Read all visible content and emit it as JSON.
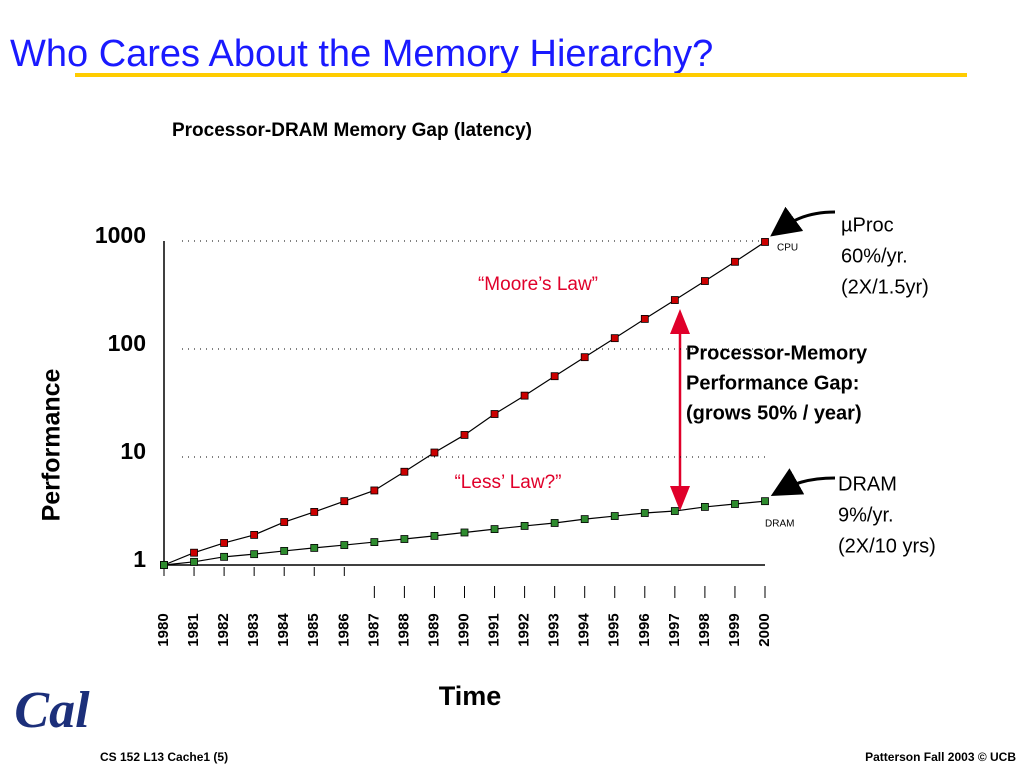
{
  "slide_title": "Who Cares About the Memory Hierarchy?",
  "footer": {
    "left": "CS 152 L13 Cache1 (5)",
    "right": "Patterson Fall 2003 © UCB",
    "logo": "Cal"
  },
  "chart_data": {
    "type": "line",
    "title": "Processor-DRAM Memory Gap (latency)",
    "x_label": "Time",
    "y_label": "Performance",
    "y_log": true,
    "grid": true,
    "x": [
      1980,
      1981,
      1982,
      1983,
      1984,
      1985,
      1986,
      1987,
      1988,
      1989,
      1990,
      1991,
      1992,
      1993,
      1994,
      1995,
      1996,
      1997,
      1998,
      1999,
      2000
    ],
    "xlim": [
      1980,
      2000
    ],
    "xticks": [
      1980,
      1981,
      1982,
      1983,
      1984,
      1985,
      1986,
      1987,
      1988,
      1989,
      1990,
      1991,
      1992,
      1993,
      1994,
      1995,
      1996,
      1997,
      1998,
      1999,
      2000
    ],
    "ylim": [
      1,
      1000
    ],
    "yticks": [
      1,
      10,
      100,
      1000
    ],
    "series": [
      {
        "name": "CPU",
        "color": "#cc0000",
        "values": [
          1,
          1.3,
          1.6,
          1.9,
          2.5,
          3.1,
          3.9,
          4.9,
          7.3,
          11,
          16,
          25,
          37,
          56,
          84,
          126,
          190,
          284,
          426,
          642,
          980
        ]
      },
      {
        "name": "DRAM",
        "color": "#2e8b2e",
        "values": [
          1,
          1.07,
          1.19,
          1.26,
          1.35,
          1.44,
          1.53,
          1.63,
          1.74,
          1.86,
          2,
          2.15,
          2.3,
          2.45,
          2.66,
          2.84,
          3.03,
          3.16,
          3.45,
          3.67,
          3.9
        ]
      }
    ],
    "moore_label": "“Moore’s Law”",
    "less_label": "“Less’ Law?”",
    "gap_label": [
      "Processor-Memory",
      "Performance Gap:",
      "(grows 50% / year)"
    ],
    "cpu_note": [
      "µProc",
      "60%/yr.",
      "(2X/1.5yr)"
    ],
    "dram_note": [
      "DRAM",
      "9%/yr.",
      "(2X/10 yrs)"
    ]
  }
}
